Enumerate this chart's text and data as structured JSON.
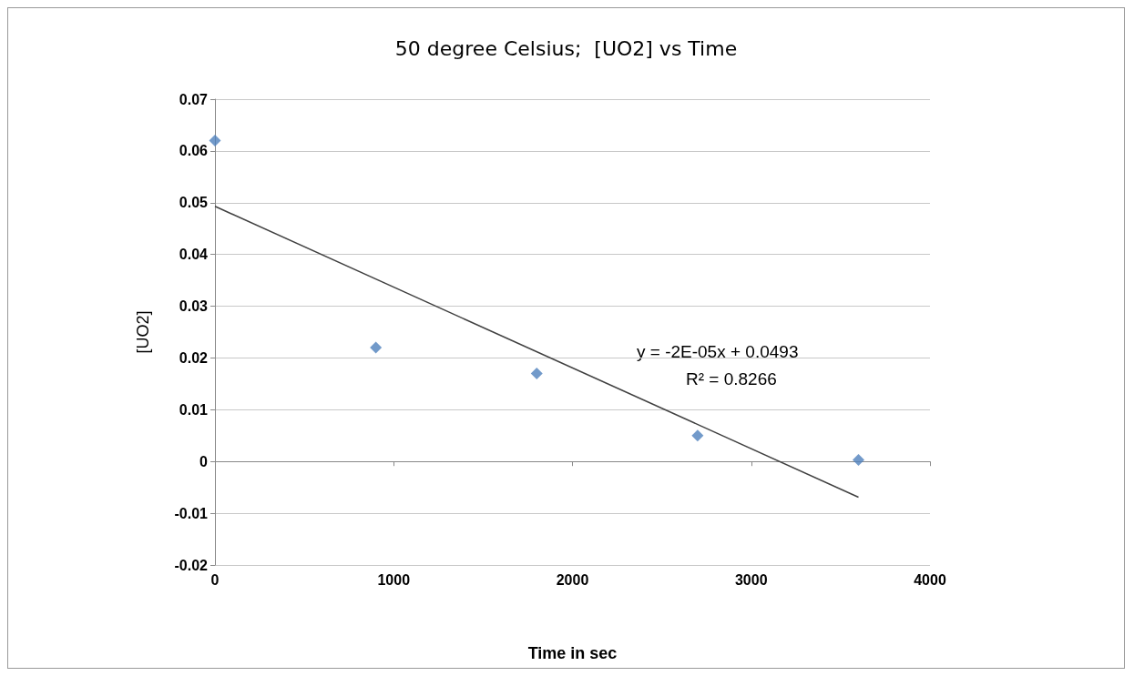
{
  "chart_data": {
    "type": "scatter",
    "title": "50 degree Celsius;  [UO2] vs Time",
    "xlabel": "Time in sec",
    "ylabel": "[UO2]",
    "x": [
      0,
      900,
      1800,
      2700,
      3600
    ],
    "series": [
      {
        "type": "scatter",
        "color": "#4f81bd",
        "values": [
          0.062,
          0.022,
          0.017,
          0.005,
          0.0003
        ],
        "marker": "diamond"
      },
      {
        "type": "line",
        "color": "#404040",
        "x": [
          0,
          3600
        ],
        "values": [
          0.0493,
          -0.0069
        ],
        "marker": "none",
        "line_style": "solid"
      }
    ],
    "xlim": [
      0,
      4000
    ],
    "xticks": [
      0,
      1000,
      2000,
      3000,
      4000
    ],
    "ylim": [
      -0.02,
      0.07
    ],
    "yticks": [
      -0.02,
      -0.01,
      0,
      0.01,
      0.02,
      0.03,
      0.04,
      0.05,
      0.06,
      0.07
    ],
    "grid": "y",
    "annotations": [
      "y = -2E-05x + 0.0493",
      "R² = 0.8266"
    ]
  }
}
